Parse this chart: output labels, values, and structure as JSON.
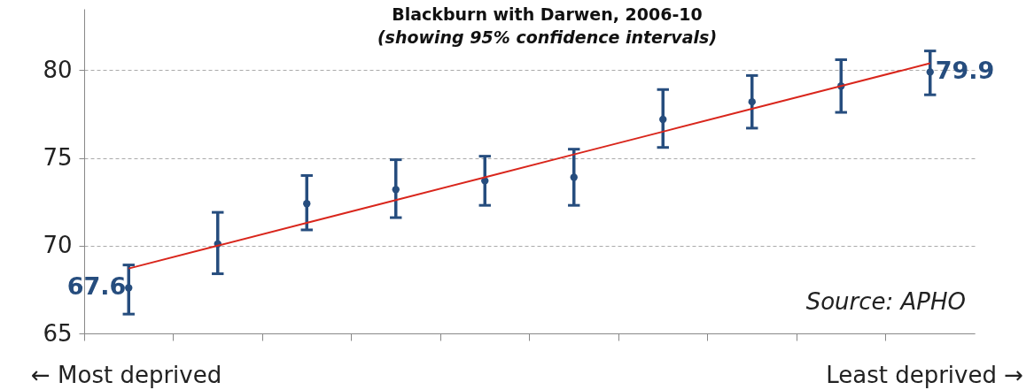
{
  "chart_data": {
    "type": "scatter",
    "title": "Blackburn with Darwen, 2006-10",
    "subtitle": "(showing 95% confidence intervals)",
    "categories": [
      null,
      null,
      null,
      null,
      null,
      null,
      null,
      null,
      null,
      null
    ],
    "ylim": [
      65,
      83.5
    ],
    "yticks": [
      65,
      70,
      75,
      80
    ],
    "grid": "y",
    "tick_labels": "y",
    "marker": "circle",
    "series": [
      {
        "color": "#264d7e",
        "values": [
          67.6,
          70.1,
          72.4,
          73.2,
          73.7,
          73.9,
          77.2,
          78.2,
          79.1,
          79.9
        ],
        "errors": [
          [
            66.1,
            68.9
          ],
          [
            68.4,
            71.9
          ],
          [
            70.9,
            74.0
          ],
          [
            71.6,
            74.9
          ],
          [
            72.3,
            75.1
          ],
          [
            72.3,
            75.5
          ],
          [
            75.6,
            78.9
          ],
          [
            76.7,
            79.7
          ],
          [
            77.6,
            80.6
          ],
          [
            78.6,
            81.1
          ]
        ],
        "value_labels": [
          "67.6",
          null,
          null,
          null,
          null,
          null,
          null,
          null,
          null,
          "79.9"
        ]
      },
      {
        "type": "line",
        "color": "#d9261c",
        "values": [
          68.7,
          70.0,
          71.3,
          72.6,
          73.9,
          75.2,
          76.5,
          77.8,
          79.1,
          80.4
        ],
        "line_style": "solid",
        "marker": "none"
      }
    ],
    "annotations": [
      "Source: APHO",
      "← Most deprived",
      "Least deprived →"
    ]
  }
}
